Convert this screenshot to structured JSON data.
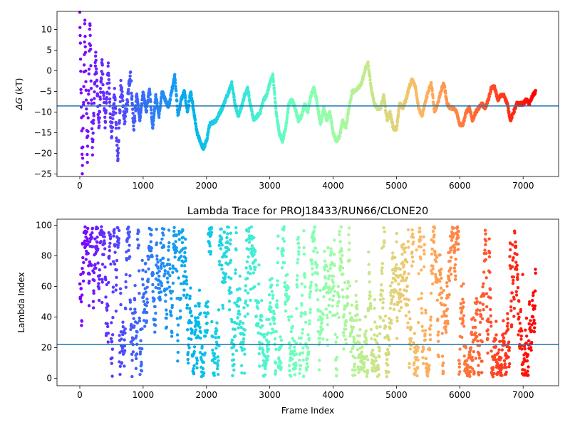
{
  "chart_data": [
    {
      "type": "scatter",
      "title": "",
      "xlabel": "",
      "ylabel_symbol": "ΔG",
      "ylabel_unit": " (kT)",
      "xlim": [
        -360,
        7560
      ],
      "ylim": [
        -25.6,
        14.4
      ],
      "xticks": [
        0,
        1000,
        2000,
        3000,
        4000,
        5000,
        6000,
        7000
      ],
      "yticks": [
        10,
        5,
        0,
        -5,
        -10,
        -15,
        -20,
        -25
      ],
      "hline": {
        "y": -8.5,
        "color": "#1f77b4"
      },
      "grid": false,
      "colormap": "rainbow (red at frame 0 → violet at last frame)",
      "n_frames": 7200,
      "trace_keypoints": [
        [
          0,
          14
        ],
        [
          40,
          -25
        ],
        [
          80,
          12
        ],
        [
          120,
          -22
        ],
        [
          160,
          13
        ],
        [
          200,
          -20
        ],
        [
          250,
          4
        ],
        [
          300,
          -14
        ],
        [
          350,
          2
        ],
        [
          400,
          -13
        ],
        [
          450,
          1
        ],
        [
          500,
          -16
        ],
        [
          550,
          -5
        ],
        [
          600,
          -22
        ],
        [
          650,
          -3
        ],
        [
          700,
          -12
        ],
        [
          750,
          -8
        ],
        [
          800,
          0
        ],
        [
          850,
          -14
        ],
        [
          900,
          -6
        ],
        [
          950,
          -12
        ],
        [
          1000,
          -5
        ],
        [
          1050,
          -10
        ],
        [
          1100,
          -4
        ],
        [
          1150,
          -14
        ],
        [
          1200,
          -6
        ],
        [
          1250,
          -11
        ],
        [
          1300,
          -5
        ],
        [
          1400,
          -9
        ],
        [
          1450,
          -5
        ],
        [
          1500,
          -1
        ],
        [
          1550,
          -11
        ],
        [
          1600,
          -7
        ],
        [
          1650,
          -5
        ],
        [
          1700,
          -10
        ],
        [
          1750,
          -5
        ],
        [
          1800,
          -10
        ],
        [
          1850,
          -15
        ],
        [
          1950,
          -19
        ],
        [
          2000,
          -17
        ],
        [
          2050,
          -13
        ],
        [
          2150,
          -12
        ],
        [
          2250,
          -9
        ],
        [
          2300,
          -7
        ],
        [
          2350,
          -5
        ],
        [
          2400,
          -3
        ],
        [
          2450,
          -8
        ],
        [
          2500,
          -11
        ],
        [
          2550,
          -9
        ],
        [
          2600,
          -6
        ],
        [
          2650,
          -4
        ],
        [
          2700,
          -9
        ],
        [
          2750,
          -12
        ],
        [
          2850,
          -10
        ],
        [
          2900,
          -7
        ],
        [
          2950,
          -6
        ],
        [
          3000,
          -3
        ],
        [
          3050,
          -1
        ],
        [
          3100,
          -10
        ],
        [
          3150,
          -15
        ],
        [
          3200,
          -17
        ],
        [
          3250,
          -14
        ],
        [
          3300,
          -8
        ],
        [
          3350,
          -7
        ],
        [
          3400,
          -9
        ],
        [
          3450,
          -12
        ],
        [
          3500,
          -11
        ],
        [
          3550,
          -8
        ],
        [
          3600,
          -10
        ],
        [
          3650,
          -6
        ],
        [
          3700,
          -4
        ],
        [
          3750,
          -8
        ],
        [
          3800,
          -13
        ],
        [
          3850,
          -9
        ],
        [
          3900,
          -12
        ],
        [
          3950,
          -10
        ],
        [
          4000,
          -15
        ],
        [
          4050,
          -17
        ],
        [
          4100,
          -16
        ],
        [
          4150,
          -12
        ],
        [
          4200,
          -14
        ],
        [
          4250,
          -9
        ],
        [
          4300,
          -5
        ],
        [
          4350,
          -5
        ],
        [
          4400,
          -4
        ],
        [
          4450,
          -3
        ],
        [
          4500,
          0
        ],
        [
          4550,
          2
        ],
        [
          4600,
          -4
        ],
        [
          4650,
          -8
        ],
        [
          4700,
          -9
        ],
        [
          4750,
          -9
        ],
        [
          4800,
          -6
        ],
        [
          4850,
          -12
        ],
        [
          4900,
          -10
        ],
        [
          4950,
          -14
        ],
        [
          5000,
          -14
        ],
        [
          5050,
          -8
        ],
        [
          5100,
          -9
        ],
        [
          5150,
          -7
        ],
        [
          5200,
          -4
        ],
        [
          5250,
          -2
        ],
        [
          5300,
          -4
        ],
        [
          5350,
          -9
        ],
        [
          5400,
          -11
        ],
        [
          5450,
          -8
        ],
        [
          5500,
          -5
        ],
        [
          5550,
          -3
        ],
        [
          5600,
          -10
        ],
        [
          5650,
          -8
        ],
        [
          5700,
          -5
        ],
        [
          5750,
          -3
        ],
        [
          5800,
          -8
        ],
        [
          5850,
          -9
        ],
        [
          5900,
          -9
        ],
        [
          5950,
          -10
        ],
        [
          6000,
          -13
        ],
        [
          6050,
          -13
        ],
        [
          6100,
          -10
        ],
        [
          6150,
          -9
        ],
        [
          6200,
          -12
        ],
        [
          6250,
          -10
        ],
        [
          6300,
          -9
        ],
        [
          6350,
          -8
        ],
        [
          6400,
          -9
        ],
        [
          6450,
          -7
        ],
        [
          6500,
          -4
        ],
        [
          6550,
          -4
        ],
        [
          6600,
          -7
        ],
        [
          6650,
          -6
        ],
        [
          6700,
          -6
        ],
        [
          6750,
          -8
        ],
        [
          6800,
          -12
        ],
        [
          6850,
          -10
        ],
        [
          6900,
          -8
        ],
        [
          6950,
          -8
        ],
        [
          7000,
          -8
        ],
        [
          7050,
          -7
        ],
        [
          7100,
          -8
        ],
        [
          7150,
          -6
        ],
        [
          7200,
          -5
        ]
      ]
    },
    {
      "type": "scatter",
      "title": "Lambda Trace for PROJ18433/RUN66/CLONE20",
      "xlabel": "Frame Index",
      "ylabel": "Lambda Index",
      "xlim": [
        -360,
        7560
      ],
      "ylim": [
        -4.9,
        103.9
      ],
      "xticks": [
        0,
        1000,
        2000,
        3000,
        4000,
        5000,
        6000,
        7000
      ],
      "yticks": [
        0,
        20,
        40,
        60,
        80,
        100
      ],
      "hline": {
        "y": 22,
        "color": "#1f77b4"
      },
      "grid": false,
      "colormap": "rainbow (red at frame 0 → violet at last frame)",
      "n_frames": 7200,
      "value_range": [
        1,
        99
      ]
    }
  ]
}
